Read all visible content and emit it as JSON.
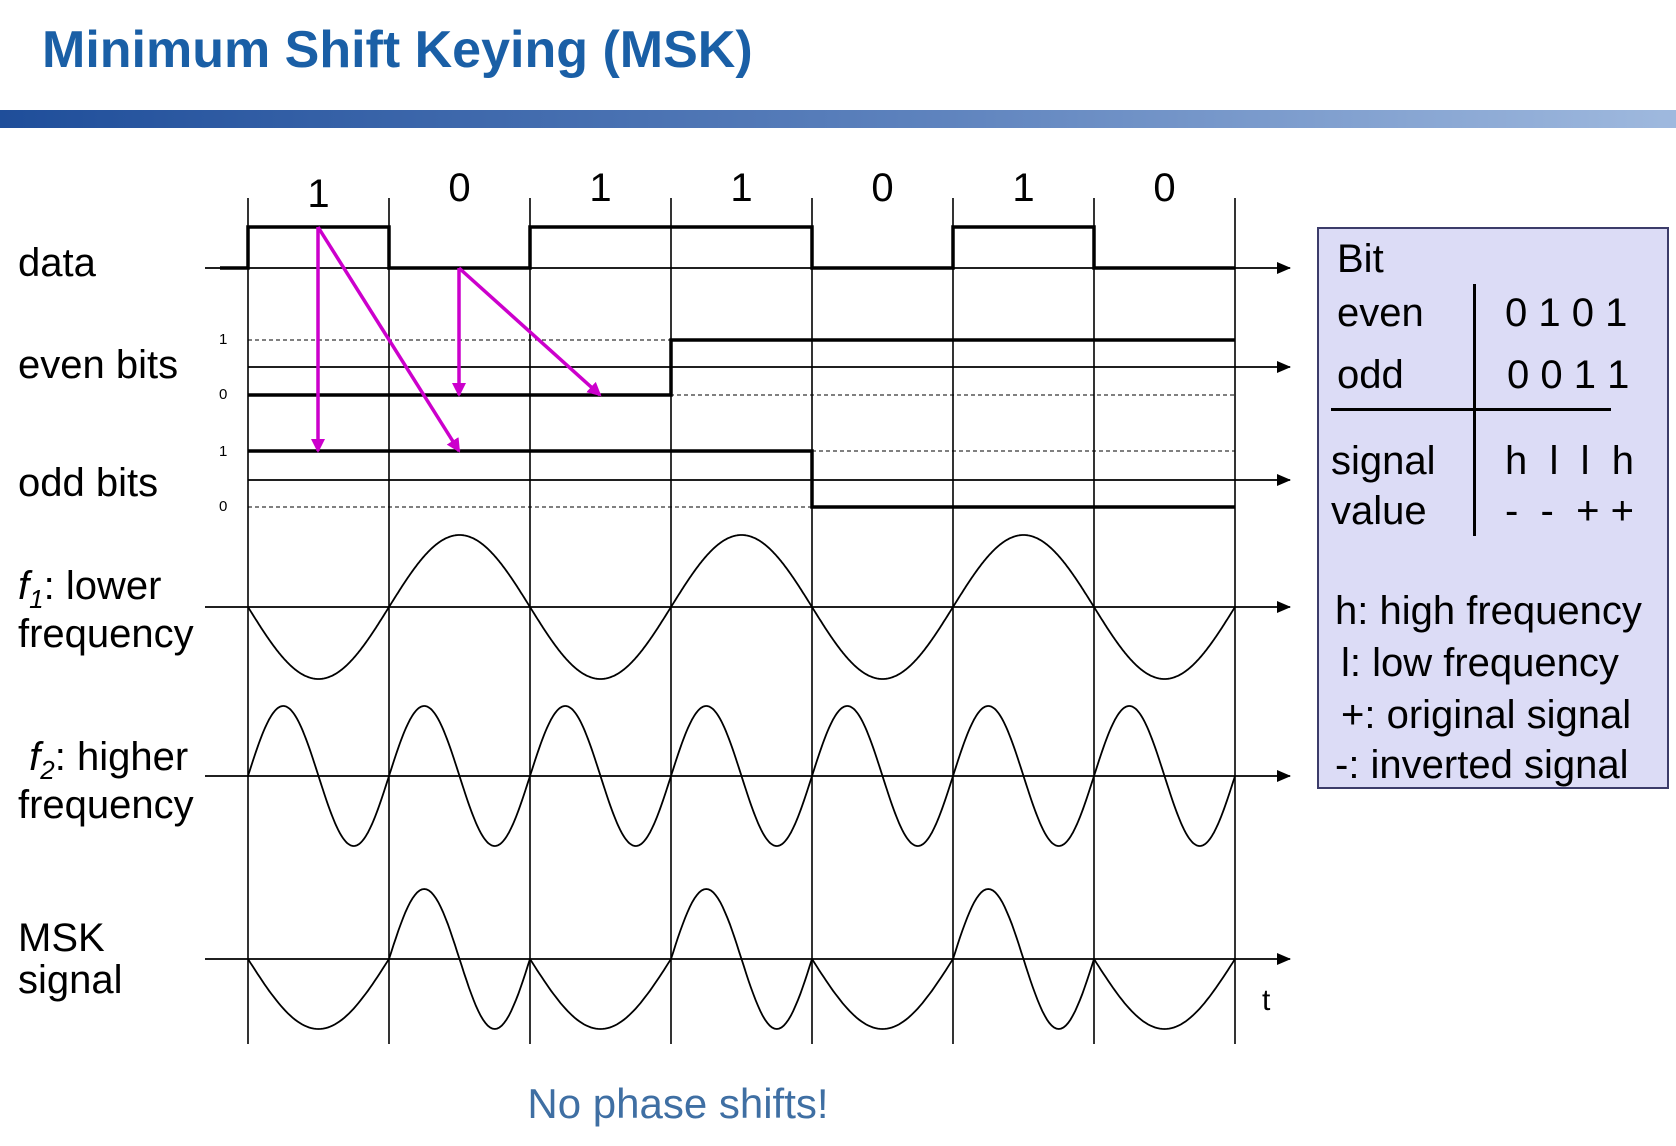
{
  "title": "Minimum Shift Keying (MSK)",
  "caption": "No phase shifts!",
  "row_labels": {
    "data": "data",
    "even": "even bits",
    "odd": "odd bits",
    "f1_name": "f",
    "f1_sub": "1",
    "f1_rest": ": lower",
    "f1_line2": "frequency",
    "f2_name": "f",
    "f2_sub": "2",
    "f2_rest": ": higher",
    "f2_line2": "frequency",
    "msk_line1": "MSK",
    "msk_line2": "signal",
    "time_axis": "t",
    "level_one": "1",
    "level_zero": "0"
  },
  "data_bits": [
    "1",
    "0",
    "1",
    "1",
    "0",
    "1",
    "0"
  ],
  "even_bits": [
    0,
    1
  ],
  "odd_bits": [
    1,
    0
  ],
  "msk_sequence": [
    "l",
    "h",
    "l",
    "h",
    "l",
    "h",
    "l"
  ],
  "colors": {
    "title": "#1a5fa6",
    "arrows": "#cc00cc",
    "legend_bg": "#dcdcf6",
    "caption": "#3f6fa3"
  },
  "legend": {
    "bit_header": "Bit",
    "even_label": "even",
    "even_values": "0 1 0 1",
    "odd_label": "odd",
    "odd_values": "0 0 1 1",
    "signal_label": "signal",
    "value_label": "value",
    "signal_values": "h  l  l  h",
    "value_values": "-  -  + +",
    "notes": [
      "h: high frequency",
      "l:  low frequency",
      "+: original signal",
      "-:  inverted signal"
    ]
  }
}
